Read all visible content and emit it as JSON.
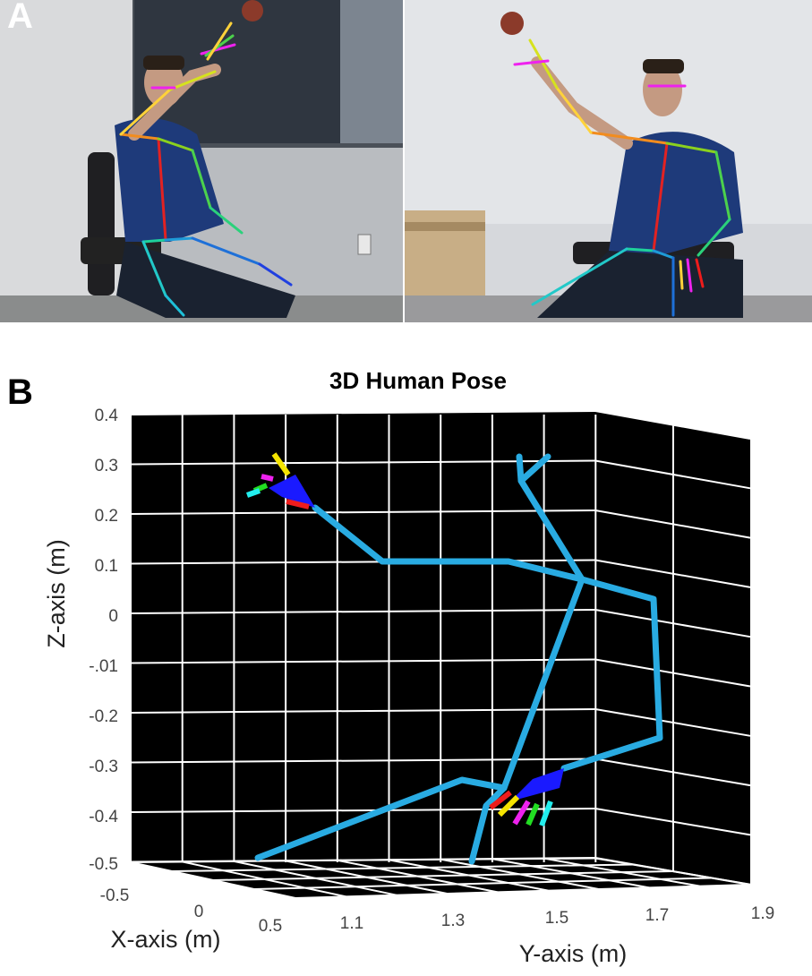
{
  "figure": {
    "panel_a_label": "A",
    "panel_b_label": "B"
  },
  "colors": {
    "skeleton": "#29abe2",
    "grid": "#ffffff",
    "plot_bg": "#000000",
    "hand_palm": "#1a1aff",
    "finger_thumb": "#ee1c1c",
    "finger_index": "#f5e400",
    "finger_middle": "#ee22ee",
    "finger_ring": "#22dd22",
    "finger_little": "#22eeee"
  },
  "panel_a": {
    "description_icons": [
      "person-photo-left",
      "person-photo-right"
    ]
  },
  "chart_data": {
    "type": "3d-line",
    "title": "3D Human Pose",
    "xlabel": "X-axis (m)",
    "ylabel": "Y-axis (m)",
    "zlabel": "Z-axis (m)",
    "xticks": [
      "-0.5",
      "0",
      "0.5"
    ],
    "yticks": [
      "1.1",
      "1.3",
      "1.5",
      "1.7",
      "1.9"
    ],
    "zticks": [
      "0.4",
      "0.3",
      "0.2",
      "0.1",
      "0",
      "-.01",
      "-0.2",
      "-0.3",
      "-0.4",
      "-0.5"
    ],
    "zlim": [
      -0.5,
      0.4
    ],
    "grid": true,
    "background": "black",
    "skeleton_series": "body joints"
  }
}
